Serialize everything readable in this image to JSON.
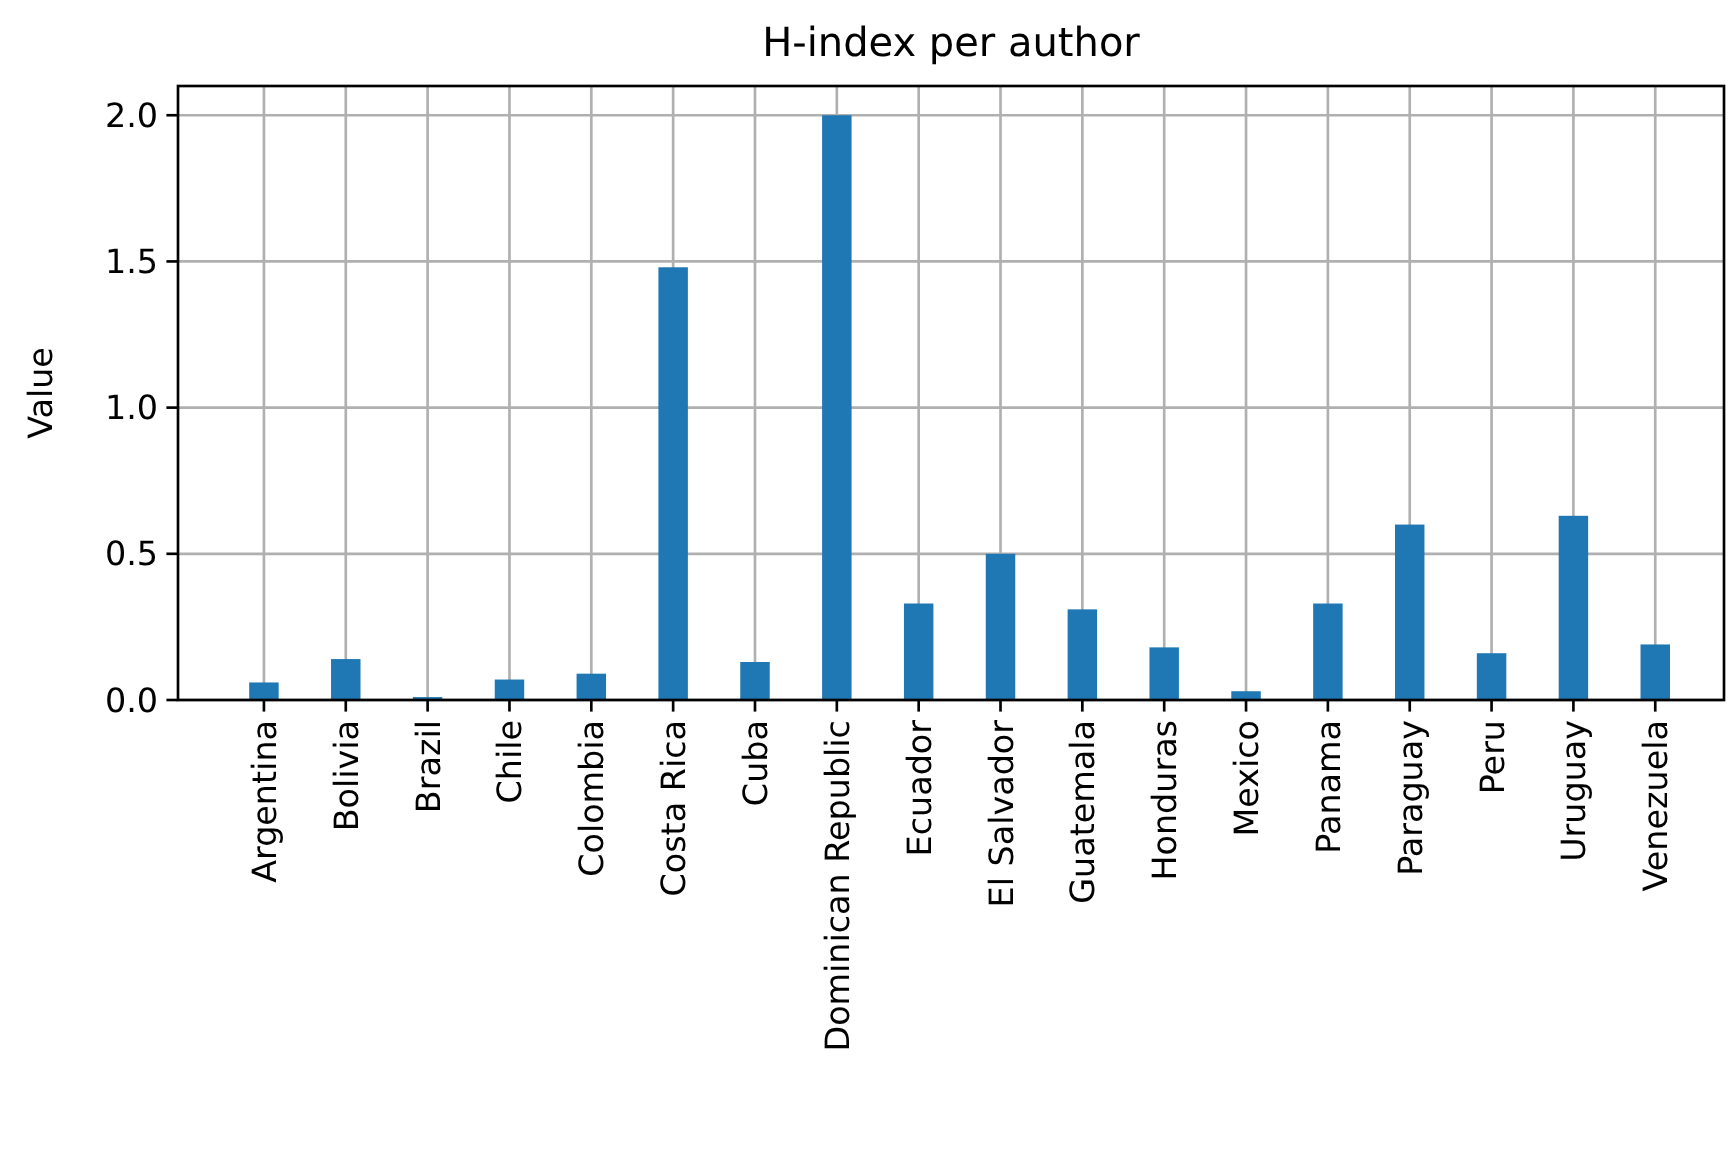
{
  "chart_data": {
    "type": "bar",
    "title": "H-index per author",
    "ylabel": "Value",
    "categories": [
      "Argentina",
      "Bolivia",
      "Brazil",
      "Chile",
      "Colombia",
      "Costa Rica",
      "Cuba",
      "Dominican Republic",
      "Ecuador",
      "El Salvador",
      "Guatemala",
      "Honduras",
      "Mexico",
      "Panama",
      "Paraguay",
      "Peru",
      "Uruguay",
      "Venezuela"
    ],
    "values": [
      0.06,
      0.14,
      0.01,
      0.07,
      0.09,
      1.48,
      0.13,
      2.0,
      0.33,
      0.5,
      0.31,
      0.18,
      0.03,
      0.33,
      0.6,
      0.16,
      0.63,
      0.19
    ],
    "color": "#1f77b4",
    "ylim": [
      0,
      2.1
    ],
    "yticks": [
      {
        "value": 0,
        "label": "0.0"
      },
      0.5,
      {
        "value": 1,
        "label": "1.0"
      },
      1.5,
      {
        "value": 2,
        "label": "2.0"
      }
    ],
    "grid": true
  }
}
